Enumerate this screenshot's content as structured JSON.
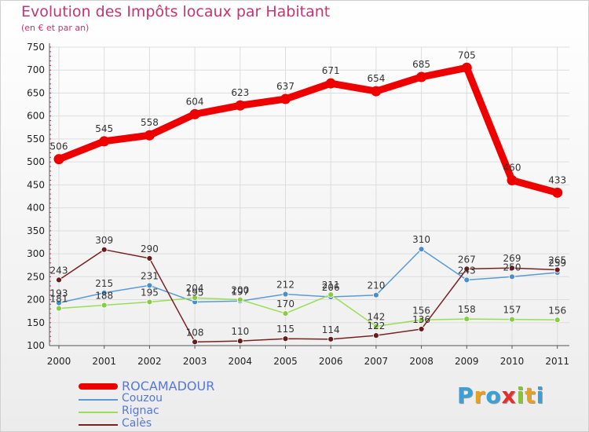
{
  "title": "Evolution des Impôts locaux par Habitant",
  "subtitle": "(en € et par an)",
  "logo": {
    "letters": [
      "P",
      "r",
      "o",
      "x",
      "i",
      "t",
      "i"
    ],
    "colors": [
      "#3aa0d8",
      "#e8a020",
      "#3aa0d8",
      "#e03030",
      "#8ac040",
      "#e8a020",
      "#3aa0d8"
    ]
  },
  "chart_data": {
    "type": "line",
    "title": "Evolution des Impôts locaux par Habitant",
    "subtitle": "(en € et par an)",
    "x": [
      "2000",
      "2001",
      "2002",
      "2003",
      "2004",
      "2005",
      "2006",
      "2007",
      "2008",
      "2009",
      "2010",
      "2011"
    ],
    "ylim": [
      100,
      750
    ],
    "yticks": [
      100,
      150,
      200,
      250,
      300,
      350,
      400,
      450,
      500,
      550,
      600,
      650,
      700,
      750
    ],
    "grid": true,
    "legend_position": "bottom-left",
    "series": [
      {
        "name": "ROCAMADOUR",
        "color": "#ee0000",
        "values": [
          506,
          545,
          558,
          604,
          623,
          637,
          671,
          654,
          685,
          705,
          460,
          433
        ]
      },
      {
        "name": "Couzou",
        "color": "#5b9bd5",
        "values": [
          193,
          215,
          231,
          195,
          197,
          212,
          206,
          210,
          310,
          243,
          250,
          259
        ]
      },
      {
        "name": "Rignac",
        "color": "#99dd55",
        "values": [
          181,
          188,
          195,
          204,
          200,
          170,
          211,
          142,
          156,
          158,
          157,
          156
        ]
      },
      {
        "name": "Calès",
        "color": "#772222",
        "values": [
          243,
          309,
          290,
          108,
          110,
          115,
          114,
          122,
          136,
          267,
          269,
          265
        ]
      }
    ]
  }
}
